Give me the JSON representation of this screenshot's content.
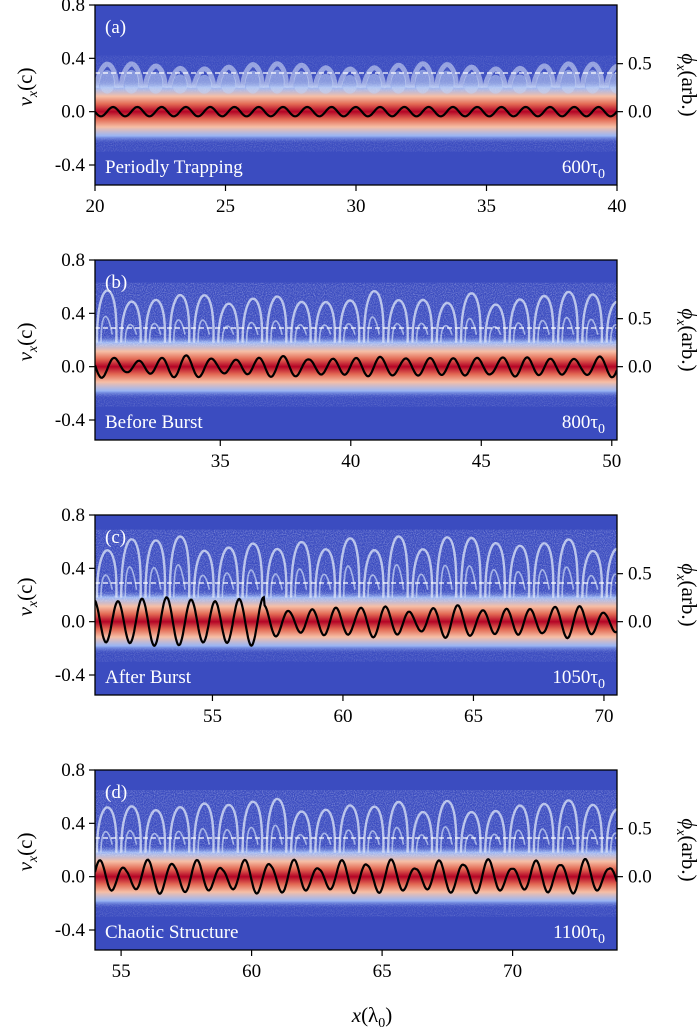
{
  "figure": {
    "xlabel_main": "x",
    "xlabel_unit": "(λ",
    "xlabel_sub": "0",
    "xlabel_close": ")",
    "ylabel_left_main": "v",
    "ylabel_left_sub": "x",
    "ylabel_left_unit": "(c)",
    "ylabel_right_main": "ϕ",
    "ylabel_right_sub": "x",
    "ylabel_right_unit": "(arb.)"
  },
  "colors": {
    "background_blue": "#3b4cc0",
    "core_red": "#b40426",
    "curve": "#000000",
    "dashed_line": "#ffffff"
  },
  "chart_data": [
    {
      "type": "heatmap",
      "panel_label": "(a)",
      "annotation": "Periodly Trapping",
      "time_main": "600τ",
      "time_sub": "0",
      "xlim": [
        20,
        40
      ],
      "xticks": [
        "20",
        "25",
        "30",
        "35",
        "40"
      ],
      "ylim_left": [
        -0.55,
        0.8
      ],
      "yticks_left": [
        "0.8",
        "0.4",
        "0.0",
        "-0.4"
      ],
      "yticks_left_values": [
        0.8,
        0.4,
        0.0,
        -0.4
      ],
      "yticks_right": [
        "0.5",
        "0.0"
      ],
      "yticks_right_values": [
        0.5,
        0.0
      ],
      "dashed_line_v": 0.29,
      "wave_period": 0.93,
      "phi_amplitude": 0.035,
      "trapped_max_v": 0.37,
      "regime": "periodic"
    },
    {
      "type": "heatmap",
      "panel_label": "(b)",
      "annotation": "Before Burst",
      "time_main": "800τ",
      "time_sub": "0",
      "xlim": [
        30.2,
        50.2
      ],
      "xticks": [
        "35",
        "40",
        "45",
        "50"
      ],
      "ylim_left": [
        -0.55,
        0.8
      ],
      "yticks_left": [
        "0.8",
        "0.4",
        "0.0",
        "-0.4"
      ],
      "yticks_left_values": [
        0.8,
        0.4,
        0.0,
        -0.4
      ],
      "yticks_right": [
        "0.5",
        "0.0"
      ],
      "yticks_right_values": [
        0.5,
        0.0
      ],
      "dashed_line_v": 0.29,
      "wave_period": 0.93,
      "phi_amplitude": 0.07,
      "trapped_max_v": 0.58,
      "regime": "pre-burst"
    },
    {
      "type": "heatmap",
      "panel_label": "(c)",
      "annotation": "After Burst",
      "time_main": "1050τ",
      "time_sub": "0",
      "xlim": [
        50.5,
        70.5
      ],
      "xticks": [
        "55",
        "60",
        "65",
        "70"
      ],
      "ylim_left": [
        -0.55,
        0.8
      ],
      "yticks_left": [
        "0.8",
        "0.4",
        "0.0",
        "-0.4"
      ],
      "yticks_left_values": [
        0.8,
        0.4,
        0.0,
        -0.4
      ],
      "yticks_right": [
        "0.5",
        "0.0"
      ],
      "yticks_right_values": [
        0.5,
        0.0
      ],
      "dashed_line_v": 0.29,
      "wave_period": 0.93,
      "phi_amplitude": 0.14,
      "trapped_max_v": 0.64,
      "regime": "post-burst"
    },
    {
      "type": "heatmap",
      "panel_label": "(d)",
      "annotation": "Chaotic Structure",
      "time_main": "1100τ",
      "time_sub": "0",
      "xlim": [
        54,
        74
      ],
      "xticks": [
        "55",
        "60",
        "65",
        "70"
      ],
      "ylim_left": [
        -0.55,
        0.8
      ],
      "yticks_left": [
        "0.8",
        "0.4",
        "0.0",
        "-0.4"
      ],
      "yticks_left_values": [
        0.8,
        0.4,
        0.0,
        -0.4
      ],
      "yticks_right": [
        "0.5",
        "0.0"
      ],
      "yticks_right_values": [
        0.5,
        0.0
      ],
      "dashed_line_v": 0.29,
      "wave_period": 0.93,
      "phi_amplitude": 0.12,
      "trapped_max_v": 0.6,
      "regime": "chaotic"
    }
  ]
}
